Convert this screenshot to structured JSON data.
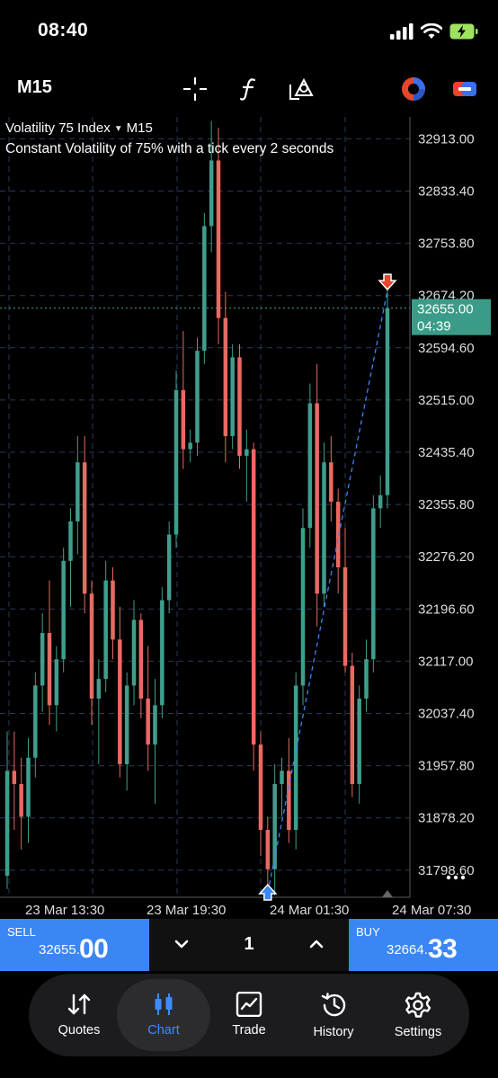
{
  "status_bar": {
    "time": "08:40"
  },
  "toolbar": {
    "timeframe": "M15",
    "icons": [
      "crosshair-icon",
      "function-icon",
      "objects-icon",
      "color-wheel-icon",
      "link-icon"
    ]
  },
  "chart_header": {
    "symbol": "Volatility 75 Index",
    "timeframe": "M15",
    "description": "Constant Volatility of 75% with a tick every 2 seconds"
  },
  "chart_data": {
    "type": "candlestick",
    "y_ticks": [
      "32913.00",
      "32833.40",
      "32753.80",
      "32674.20",
      "32594.60",
      "32515.00",
      "32435.40",
      "32355.80",
      "32276.20",
      "32196.60",
      "32117.00",
      "32037.40",
      "31957.80",
      "31878.20",
      "31798.60"
    ],
    "ylim": [
      31757.3,
      32946.4
    ],
    "x_ticks": [
      "23 Mar 13:30",
      "23 Mar 19:30",
      "24 Mar 01:30",
      "24 Mar 07:30"
    ],
    "current_price": "32655.00",
    "countdown": "04:39",
    "up_color": "#3f9e8c",
    "down_color": "#e86a62",
    "grid": true,
    "candles": [
      {
        "o": 31790,
        "h": 32010,
        "l": 31770,
        "c": 31950
      },
      {
        "o": 31950,
        "h": 32010,
        "l": 31860,
        "c": 31930
      },
      {
        "o": 31930,
        "h": 31970,
        "l": 31830,
        "c": 31880
      },
      {
        "o": 31880,
        "h": 32000,
        "l": 31840,
        "c": 31970
      },
      {
        "o": 31970,
        "h": 32100,
        "l": 31940,
        "c": 32080
      },
      {
        "o": 32080,
        "h": 32190,
        "l": 32040,
        "c": 32160
      },
      {
        "o": 32160,
        "h": 32240,
        "l": 32020,
        "c": 32050
      },
      {
        "o": 32050,
        "h": 32140,
        "l": 32010,
        "c": 32120
      },
      {
        "o": 32120,
        "h": 32290,
        "l": 32100,
        "c": 32270
      },
      {
        "o": 32270,
        "h": 32350,
        "l": 32200,
        "c": 32330
      },
      {
        "o": 32330,
        "h": 32460,
        "l": 32280,
        "c": 32420
      },
      {
        "o": 32420,
        "h": 32460,
        "l": 32190,
        "c": 32220
      },
      {
        "o": 32220,
        "h": 32240,
        "l": 32020,
        "c": 32060
      },
      {
        "o": 32060,
        "h": 32120,
        "l": 31960,
        "c": 32090
      },
      {
        "o": 32090,
        "h": 32270,
        "l": 32070,
        "c": 32240
      },
      {
        "o": 32240,
        "h": 32260,
        "l": 32120,
        "c": 32150
      },
      {
        "o": 32150,
        "h": 32200,
        "l": 31940,
        "c": 31960
      },
      {
        "o": 31960,
        "h": 32100,
        "l": 31920,
        "c": 32080
      },
      {
        "o": 32080,
        "h": 32210,
        "l": 32050,
        "c": 32180
      },
      {
        "o": 32180,
        "h": 32190,
        "l": 32030,
        "c": 32060
      },
      {
        "o": 32060,
        "h": 32140,
        "l": 31950,
        "c": 31990
      },
      {
        "o": 31990,
        "h": 32090,
        "l": 31900,
        "c": 32050
      },
      {
        "o": 32050,
        "h": 32230,
        "l": 32030,
        "c": 32210
      },
      {
        "o": 32210,
        "h": 32330,
        "l": 32190,
        "c": 32310
      },
      {
        "o": 32310,
        "h": 32560,
        "l": 32290,
        "c": 32530
      },
      {
        "o": 32530,
        "h": 32620,
        "l": 32410,
        "c": 32440
      },
      {
        "o": 32440,
        "h": 32470,
        "l": 32420,
        "c": 32450
      },
      {
        "o": 32450,
        "h": 32610,
        "l": 32430,
        "c": 32590
      },
      {
        "o": 32590,
        "h": 32800,
        "l": 32570,
        "c": 32780
      },
      {
        "o": 32780,
        "h": 32940,
        "l": 32740,
        "c": 32880
      },
      {
        "o": 32880,
        "h": 32930,
        "l": 32600,
        "c": 32640
      },
      {
        "o": 32640,
        "h": 32680,
        "l": 32420,
        "c": 32460
      },
      {
        "o": 32460,
        "h": 32600,
        "l": 32440,
        "c": 32580
      },
      {
        "o": 32580,
        "h": 32600,
        "l": 32410,
        "c": 32430
      },
      {
        "o": 32430,
        "h": 32470,
        "l": 32360,
        "c": 32440
      },
      {
        "o": 32440,
        "h": 32450,
        "l": 31950,
        "c": 31990
      },
      {
        "o": 31990,
        "h": 32010,
        "l": 31820,
        "c": 31860
      },
      {
        "o": 31860,
        "h": 31880,
        "l": 31760,
        "c": 31800
      },
      {
        "o": 31800,
        "h": 31960,
        "l": 31760,
        "c": 31930
      },
      {
        "o": 31930,
        "h": 31970,
        "l": 31880,
        "c": 31950
      },
      {
        "o": 31950,
        "h": 32000,
        "l": 31840,
        "c": 31860
      },
      {
        "o": 31860,
        "h": 32100,
        "l": 31830,
        "c": 32080
      },
      {
        "o": 32080,
        "h": 32350,
        "l": 32050,
        "c": 32320
      },
      {
        "o": 32320,
        "h": 32540,
        "l": 32290,
        "c": 32510
      },
      {
        "o": 32510,
        "h": 32570,
        "l": 32170,
        "c": 32220
      },
      {
        "o": 32220,
        "h": 32450,
        "l": 32200,
        "c": 32420
      },
      {
        "o": 32420,
        "h": 32460,
        "l": 32330,
        "c": 32360
      },
      {
        "o": 32360,
        "h": 32380,
        "l": 32220,
        "c": 32260
      },
      {
        "o": 32260,
        "h": 32320,
        "l": 32100,
        "c": 32110
      },
      {
        "o": 32110,
        "h": 32130,
        "l": 31910,
        "c": 31930
      },
      {
        "o": 31930,
        "h": 32080,
        "l": 31900,
        "c": 32060
      },
      {
        "o": 32060,
        "h": 32150,
        "l": 32040,
        "c": 32120
      },
      {
        "o": 32120,
        "h": 32370,
        "l": 32100,
        "c": 32350
      },
      {
        "o": 32350,
        "h": 32400,
        "l": 32320,
        "c": 32370
      },
      {
        "o": 32370,
        "h": 32690,
        "l": 32350,
        "c": 32655
      }
    ]
  },
  "trade": {
    "sell_label": "SELL",
    "sell_price_main": "32655.",
    "sell_price_big": "00",
    "buy_label": "BUY",
    "buy_price_main": "32664.",
    "buy_price_big": "33",
    "volume": "1"
  },
  "tabs": [
    {
      "label": "Quotes",
      "icon": "arrows-updown-icon"
    },
    {
      "label": "Chart",
      "icon": "candles-icon"
    },
    {
      "label": "Trade",
      "icon": "trend-chart-icon"
    },
    {
      "label": "History",
      "icon": "history-clock-icon"
    },
    {
      "label": "Settings",
      "icon": "gear-icon"
    }
  ]
}
